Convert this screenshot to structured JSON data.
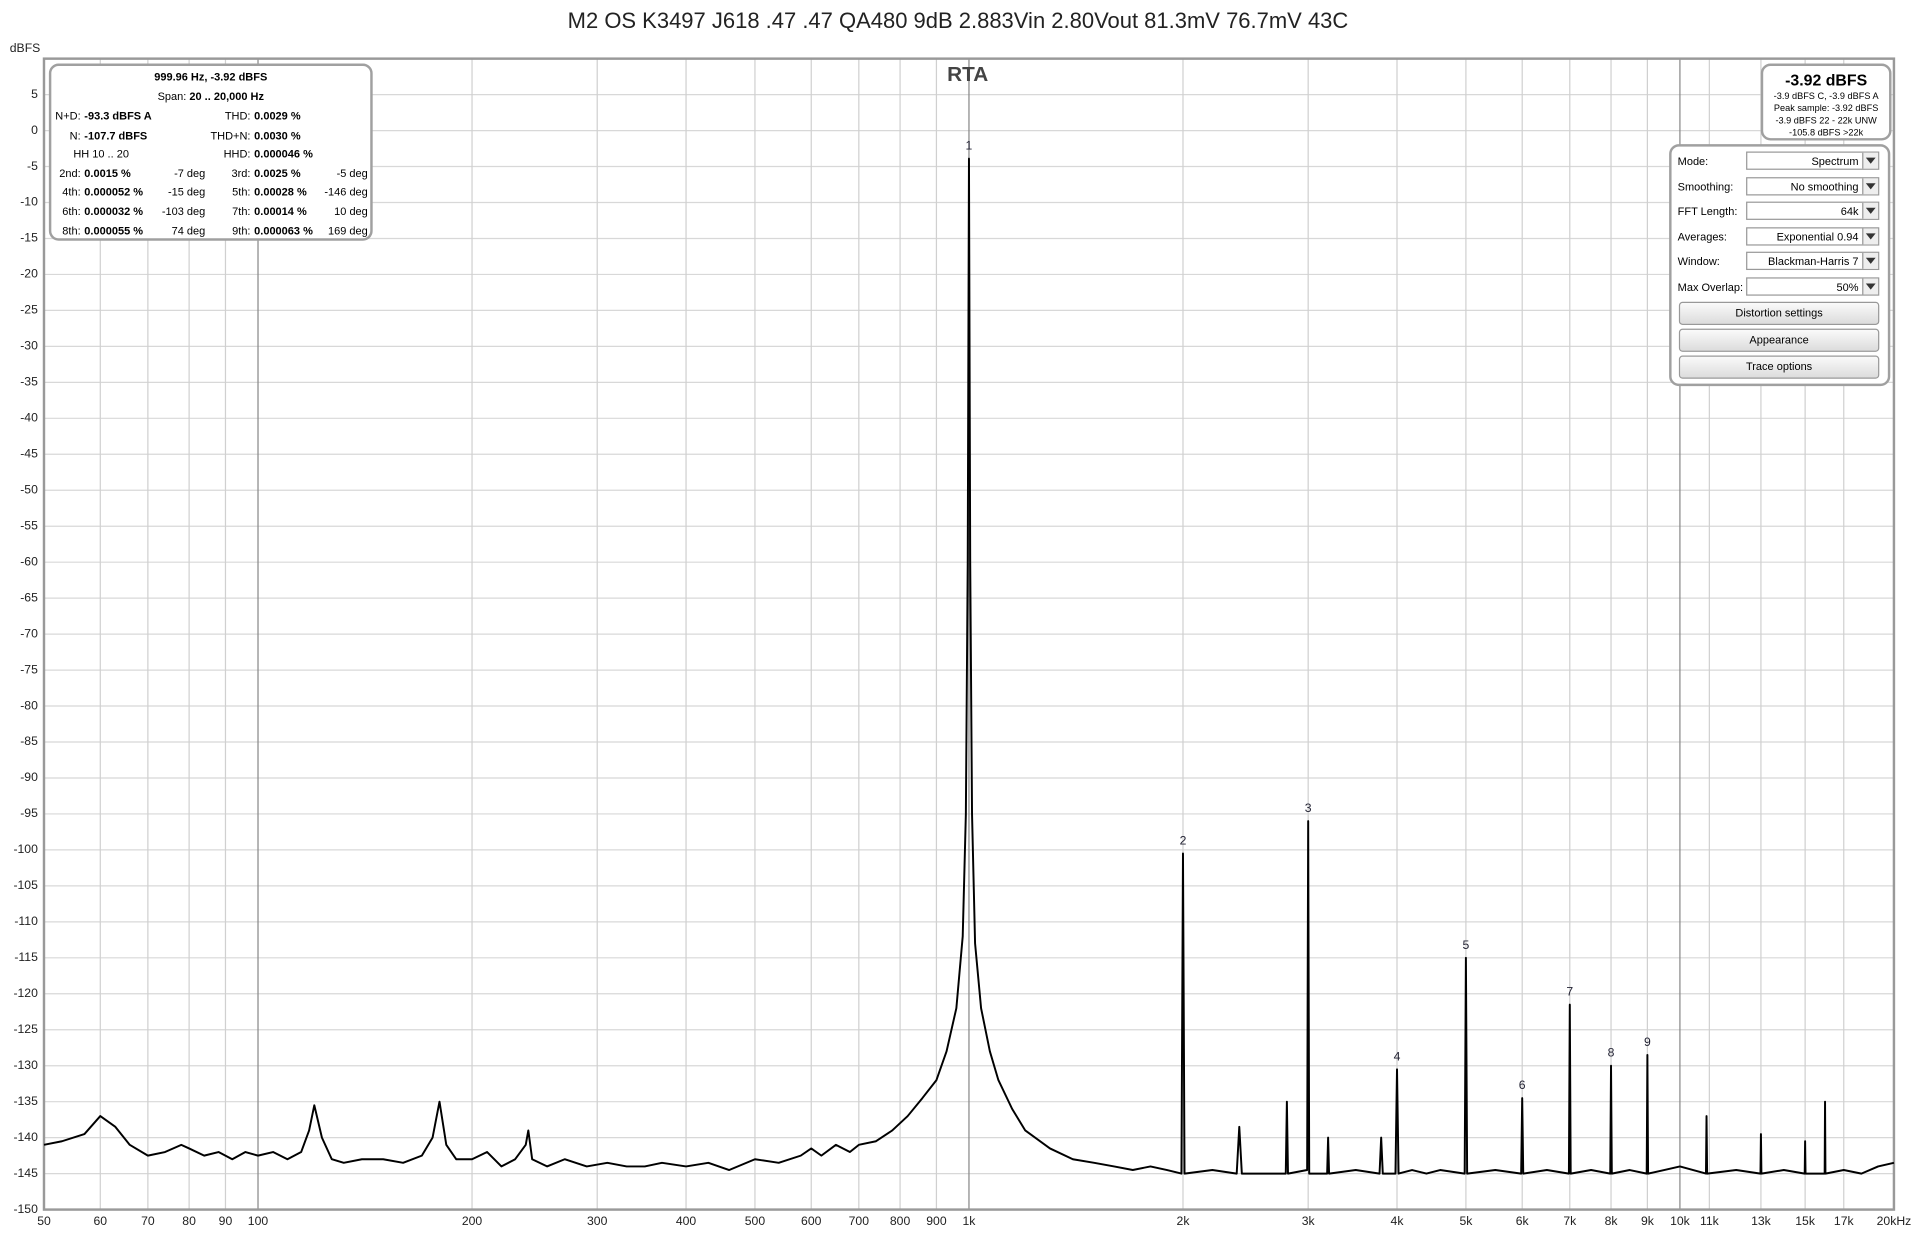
{
  "chart_data": {
    "type": "line",
    "title": "M2 OS K3497 J618 .47 .47 QA480 9dB 2.883Vin 2.80Vout 81.3mV 76.7mV 43C",
    "plot_label": "RTA",
    "y_unit": "dBFS",
    "log_x": true,
    "grid": true,
    "color": "#000000",
    "xlim": [
      50,
      20000
    ],
    "ylim": [
      -150,
      10
    ],
    "xticks": [
      50,
      60,
      70,
      80,
      90,
      100,
      200,
      300,
      400,
      500,
      600,
      700,
      800,
      900,
      {
        "value": 1000,
        "label": "1k"
      },
      {
        "value": 2000,
        "label": "2k"
      },
      {
        "value": 3000,
        "label": "3k"
      },
      {
        "value": 4000,
        "label": "4k"
      },
      {
        "value": 5000,
        "label": "5k"
      },
      {
        "value": 6000,
        "label": "6k"
      },
      {
        "value": 7000,
        "label": "7k"
      },
      {
        "value": 8000,
        "label": "8k"
      },
      {
        "value": 9000,
        "label": "9k"
      },
      {
        "value": 10000,
        "label": "10k"
      },
      {
        "value": 11000,
        "label": "11k"
      },
      {
        "value": 13000,
        "label": "13k"
      },
      {
        "value": 15000,
        "label": "15k"
      },
      {
        "value": 17000,
        "label": "17k"
      },
      {
        "value": 20000,
        "label": "20kHz"
      }
    ],
    "yticks": [
      5,
      0,
      -5,
      -10,
      -15,
      -20,
      -25,
      -30,
      -35,
      -40,
      -45,
      -50,
      -55,
      -60,
      -65,
      -70,
      -75,
      -80,
      -85,
      -90,
      -95,
      -100,
      -105,
      -110,
      -115,
      -120,
      -125,
      -130,
      -135,
      -140,
      -145,
      -150
    ],
    "x": [
      50,
      53,
      57,
      60,
      63,
      66,
      70,
      74,
      78,
      80,
      84,
      88,
      92,
      96,
      100,
      105,
      110,
      115,
      118,
      120,
      123,
      127,
      132,
      140,
      150,
      160,
      170,
      176,
      180,
      184,
      190,
      200,
      210,
      220,
      230,
      238,
      240,
      243,
      255,
      270,
      290,
      310,
      330,
      350,
      370,
      400,
      430,
      460,
      500,
      540,
      580,
      600,
      620,
      650,
      680,
      700,
      740,
      780,
      820,
      860,
      900,
      930,
      960,
      980,
      990,
      996,
      1000,
      1004,
      1010,
      1020,
      1040,
      1070,
      1100,
      1150,
      1200,
      1300,
      1400,
      1500,
      1600,
      1700,
      1800,
      1900,
      1990,
      2000,
      2010,
      2200,
      2380,
      2400,
      2420,
      2600,
      2790,
      2800,
      2810,
      2990,
      3000,
      3010,
      3190,
      3200,
      3210,
      3500,
      3780,
      3800,
      3820,
      3980,
      4000,
      4020,
      4200,
      4400,
      4600,
      4980,
      5000,
      5020,
      5500,
      5980,
      6000,
      6020,
      6500,
      6980,
      7000,
      7020,
      7500,
      7980,
      8000,
      8020,
      8500,
      8980,
      9000,
      9020,
      9500,
      10000,
      10880,
      10900,
      10920,
      12000,
      12980,
      13000,
      13020,
      14000,
      14980,
      15000,
      15020,
      15980,
      16000,
      16020,
      17000,
      18000,
      19000,
      20000
    ],
    "values": [
      -141,
      -140.5,
      -139.5,
      -137,
      -138.5,
      -141,
      -142.5,
      -142,
      -141,
      -141.5,
      -142.5,
      -142,
      -143,
      -142,
      -142.5,
      -142,
      -143,
      -142,
      -139,
      -135.5,
      -140,
      -143,
      -143.5,
      -143,
      -143,
      -143.5,
      -142.5,
      -140,
      -135,
      -141,
      -143,
      -143,
      -142,
      -144,
      -143,
      -141,
      -139,
      -143,
      -144,
      -143,
      -144,
      -143.5,
      -144,
      -144,
      -143.5,
      -144,
      -143.5,
      -144.5,
      -143,
      -143.5,
      -142.5,
      -141.5,
      -142.5,
      -141,
      -142,
      -141,
      -140.5,
      -139,
      -137,
      -134.5,
      -132,
      -128,
      -122,
      -112,
      -95,
      -60,
      -3.9,
      -60,
      -95,
      -113,
      -122,
      -128,
      -132,
      -136,
      -139,
      -141.5,
      -143,
      -143.5,
      -144,
      -144.5,
      -144,
      -144.5,
      -145,
      -100.5,
      -145,
      -144.5,
      -145,
      -138.5,
      -145,
      -145,
      -145,
      -135,
      -145,
      -144.5,
      -96,
      -145,
      -145,
      -140,
      -145,
      -144.5,
      -145,
      -140,
      -145,
      -145,
      -130.5,
      -145,
      -144.5,
      -145,
      -144.5,
      -145,
      -115,
      -145,
      -144.5,
      -145,
      -134.5,
      -145,
      -144.5,
      -145,
      -121.5,
      -145,
      -144.5,
      -145,
      -130,
      -145,
      -144.5,
      -145,
      -128.5,
      -145,
      -144.5,
      -144,
      -145,
      -137,
      -145,
      -144.5,
      -145,
      -139.5,
      -145,
      -144.5,
      -145,
      -140.5,
      -145,
      -145,
      -135,
      -145,
      -144.5,
      -145,
      -144,
      -143.5
    ],
    "markers": [
      {
        "label": "1",
        "x": 1000,
        "value": -3.9
      },
      {
        "label": "2",
        "x": 2000,
        "value": -100.5
      },
      {
        "label": "3",
        "x": 3000,
        "value": -96
      },
      {
        "label": "4",
        "x": 4000,
        "value": -130.5
      },
      {
        "label": "5",
        "x": 5000,
        "value": -115
      },
      {
        "label": "6",
        "x": 6000,
        "value": -134.5
      },
      {
        "label": "7",
        "x": 7000,
        "value": -121.5
      },
      {
        "label": "8",
        "x": 8000,
        "value": -130
      },
      {
        "label": "9",
        "x": 9000,
        "value": -128.5
      }
    ]
  },
  "info_panel": {
    "header": "999.96 Hz, -3.92 dBFS",
    "span_label": "Span:",
    "span": "20 .. 20,000 Hz",
    "rows": [
      {
        "left": [
          "N+D:",
          "-93.3 dBFS A"
        ],
        "right": [
          "THD:",
          "0.0029 %"
        ]
      },
      {
        "left": [
          "N:",
          "-107.7 dBFS"
        ],
        "right": [
          "THD+N:",
          "0.0030 %"
        ]
      },
      {
        "left": [
          "HH 10 .. 20"
        ],
        "right": [
          "HHD:",
          "0.000046 %"
        ]
      },
      {
        "left": [
          "2nd:",
          "0.0015 %",
          "-7 deg"
        ],
        "right": [
          "3rd:",
          "0.0025 %",
          "-5 deg"
        ]
      },
      {
        "left": [
          "4th:",
          "0.000052 %",
          "-15 deg"
        ],
        "right": [
          "5th:",
          "0.00028 %",
          "-146 deg"
        ]
      },
      {
        "left": [
          "6th:",
          "0.000032 %",
          "-103 deg"
        ],
        "right": [
          "7th:",
          "0.00014 %",
          "10 deg"
        ]
      },
      {
        "left": [
          "8th:",
          "0.000055 %",
          "74 deg"
        ],
        "right": [
          "9th:",
          "0.000063 %",
          "169 deg"
        ]
      }
    ]
  },
  "level_panel": {
    "level": "-3.92 dBFS",
    "lines": [
      "-3.9 dBFS C, -3.9 dBFS A",
      "Peak sample: -3.92 dBFS",
      "-3.9 dBFS 22 - 22k UNW",
      "-105.8 dBFS >22k"
    ]
  },
  "controls": {
    "fields": [
      {
        "label": "Mode:",
        "value": "Spectrum"
      },
      {
        "label": "Smoothing:",
        "value": "No  smoothing"
      },
      {
        "label": "FFT Length:",
        "value": "64k"
      },
      {
        "label": "Averages:",
        "value": "Exponential 0.94"
      },
      {
        "label": "Window:",
        "value": "Blackman-Harris 7"
      },
      {
        "label": "Max Overlap:",
        "value": "50%"
      }
    ],
    "buttons": [
      "Distortion settings",
      "Appearance",
      "Trace options"
    ]
  }
}
